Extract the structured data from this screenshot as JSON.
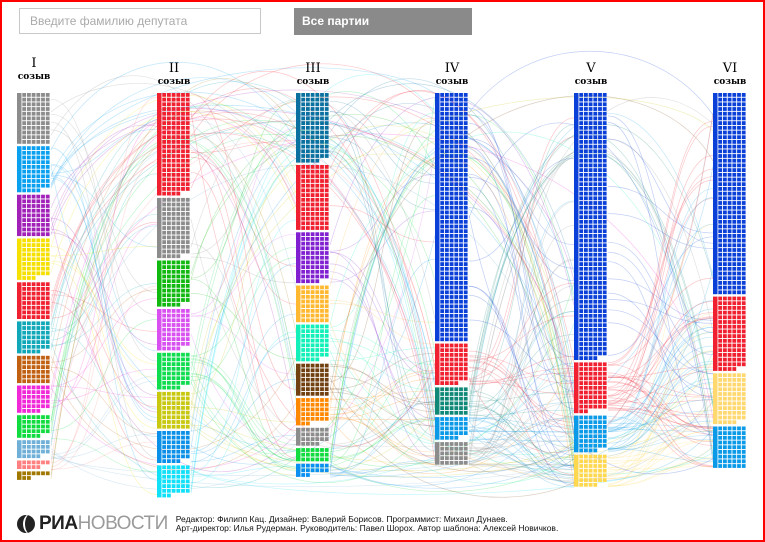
{
  "search": {
    "placeholder": "Введите фамилию депутата"
  },
  "party_filter": {
    "label": "Все партии"
  },
  "convocations": [
    {
      "numeral": "I",
      "word": "созыв",
      "segments": [
        {
          "color": "#8c8c8c",
          "seats": 66
        },
        {
          "color": "#0aa0f0",
          "seats": 58
        },
        {
          "color": "#a020b8",
          "seats": 54
        },
        {
          "color": "#f5e000",
          "seats": 51
        },
        {
          "color": "#f02030",
          "seats": 48
        },
        {
          "color": "#10a8b8",
          "seats": 40
        },
        {
          "color": "#c06010",
          "seats": 36
        },
        {
          "color": "#f028d8",
          "seats": 34
        },
        {
          "color": "#10dc40",
          "seats": 28
        },
        {
          "color": "#70b0d8",
          "seats": 22
        },
        {
          "color": "#ff8080",
          "seats": 10
        },
        {
          "color": "#a07800",
          "seats": 8
        }
      ]
    },
    {
      "numeral": "II",
      "word": "созыв",
      "segments": [
        {
          "color": "#f02030",
          "seats": 130
        },
        {
          "color": "#8c8c8c",
          "seats": 76
        },
        {
          "color": "#10b810",
          "seats": 58
        },
        {
          "color": "#d850f0",
          "seats": 52
        },
        {
          "color": "#10dc50",
          "seats": 46
        },
        {
          "color": "#c8c810",
          "seats": 48
        },
        {
          "color": "#0a90e8",
          "seats": 40
        },
        {
          "color": "#10e0f8",
          "seats": 38
        }
      ]
    },
    {
      "numeral": "III",
      "word": "созыв",
      "segments": [
        {
          "color": "#0a70a0",
          "seats": 88
        },
        {
          "color": "#f02030",
          "seats": 84
        },
        {
          "color": "#8020d0",
          "seats": 64
        },
        {
          "color": "#ffb830",
          "seats": 48
        },
        {
          "color": "#10f0b8",
          "seats": 46
        },
        {
          "color": "#704010",
          "seats": 42
        },
        {
          "color": "#ff8800",
          "seats": 32
        },
        {
          "color": "#8c8c8c",
          "seats": 22
        },
        {
          "color": "#10dc40",
          "seats": 18
        },
        {
          "color": "#0a90f0",
          "seats": 14
        }
      ]
    },
    {
      "numeral": "IV",
      "word": "созыв",
      "segments": [
        {
          "color": "#0a40d8",
          "seats": 318
        },
        {
          "color": "#f02030",
          "seats": 52
        },
        {
          "color": "#108878",
          "seats": 36
        },
        {
          "color": "#0a9ae8",
          "seats": 28
        },
        {
          "color": "#8c8c8c",
          "seats": 30
        }
      ]
    },
    {
      "numeral": "V",
      "word": "созыв",
      "segments": [
        {
          "color": "#0a40d8",
          "seats": 340
        },
        {
          "color": "#f02030",
          "seats": 62
        },
        {
          "color": "#0a9ae8",
          "seats": 46
        },
        {
          "color": "#ffd850",
          "seats": 40
        }
      ]
    },
    {
      "numeral": "VI",
      "word": "созыв",
      "segments": [
        {
          "color": "#0a40d8",
          "seats": 258
        },
        {
          "color": "#f02030",
          "seats": 94
        },
        {
          "color": "#ffd870",
          "seats": 64
        },
        {
          "color": "#0a9ae8",
          "seats": 54
        }
      ]
    }
  ],
  "footer": {
    "logo_bold": "РИА",
    "logo_light": "НОВОСТИ",
    "credits_line1": "Редактор: Филипп Кац. Дизайнер: Валерий Борисов. Программист: Михаил Дунаев.",
    "credits_line2": "Арт-директор: Илья Рудерман. Руководитель: Павел Шорох. Автор шаблона: Алексей Новичков."
  }
}
